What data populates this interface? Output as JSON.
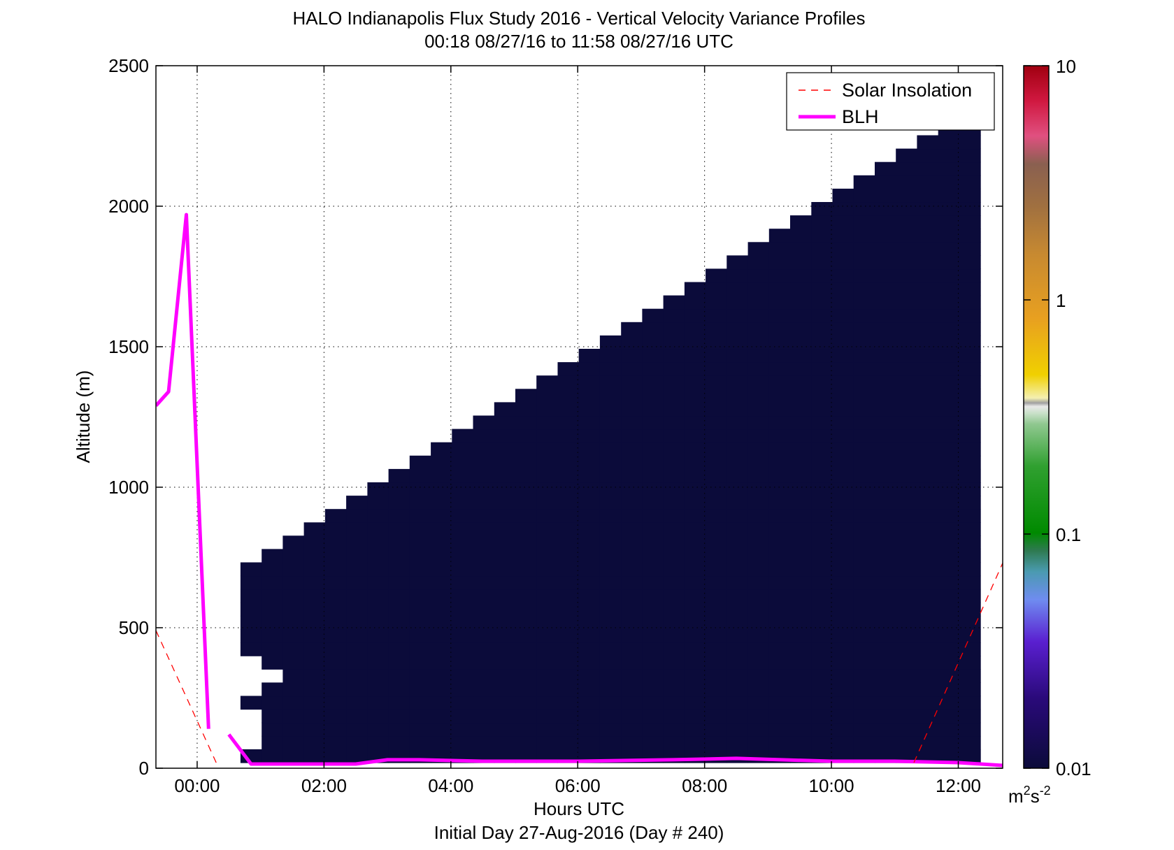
{
  "chart_data": {
    "type": "heatmap",
    "title": "HALO Indianapolis Flux Study 2016 - Vertical Velocity Variance Profiles",
    "subtitle": "00:18 08/27/16 to 11:58 08/27/16  UTC",
    "xlabel": "Hours UTC",
    "xlabel2": "Initial Day 27-Aug-2016 (Day # 240)",
    "ylabel": "Altitude (m)",
    "xlim": [
      -0.65,
      12.7
    ],
    "ylim": [
      0,
      2500
    ],
    "x_ticks": [
      0,
      2,
      4,
      6,
      8,
      10,
      12
    ],
    "x_tick_labels": [
      "00:00",
      "02:00",
      "04:00",
      "06:00",
      "08:00",
      "10:00",
      "12:00"
    ],
    "y_ticks": [
      0,
      500,
      1000,
      1500,
      2000,
      2500
    ],
    "y_tick_labels": [
      "0",
      "500",
      "1000",
      "1500",
      "2000",
      "2500"
    ],
    "grid": true,
    "legend_position": "top-right",
    "legend": [
      {
        "label": "Solar Insolation",
        "style": "dashed",
        "color": "#ff0000"
      },
      {
        "label": "BLH",
        "style": "solid",
        "color": "#ff00ff"
      }
    ],
    "colorbar": {
      "scale": "log",
      "range": [
        0.01,
        10
      ],
      "ticks": [
        0.01,
        0.1,
        1,
        10
      ],
      "tick_labels": [
        "0.01",
        "0.1",
        "1",
        "10"
      ],
      "unit_base": "m",
      "unit_exp1": "2",
      "unit_mid": "s",
      "unit_exp2": "-2"
    },
    "series": [
      {
        "name": "BLH",
        "x": [
          -0.65,
          -0.45,
          -0.17,
          0.18,
          0.5,
          0.85,
          1.5,
          2.5,
          3.0,
          3.5,
          4.5,
          6.0,
          7.5,
          8.5,
          9.2,
          10.0,
          11.0,
          12.0,
          12.7
        ],
        "y": [
          1290,
          1340,
          1970,
          140,
          120,
          15,
          15,
          15,
          30,
          30,
          25,
          25,
          30,
          35,
          30,
          25,
          25,
          20,
          10
        ],
        "gap_after_index": 3
      },
      {
        "name": "Solar Insolation",
        "x": [
          -0.65,
          0.3,
          11.3,
          12.7
        ],
        "y": [
          490,
          20,
          20,
          730
        ]
      }
    ],
    "heatmap": {
      "x_start": 0.35,
      "x_step": 0.3333,
      "y_start": 20,
      "y_step": 47.5,
      "n_cols": 36,
      "n_rows": 52,
      "grid_rows": [
        "!..........................,,,,,,,,,",
        "!!,,,,,,,,,,,,,,,,,,,,,,,,,,,,,,,,,,",
        "!!,,,,,,,,,,,,,,,,,,,,,,,,,,,,,,,,,,",
        "!!,,,,,,,,,,,,,,,,,,,,,,,,,,,,,,,,,,",
        "!,,,,,,,,,,,,,,,,,,,,,,,,,,,,,,,,,,,",
        "!!,,,,,,,,,,,,,,,,,,,,,,,,,,,,,,,,,,",
        "!!!,,,,,,,,,,,,,,,,,,,,,,,,,,,,,,,,,",
        "!!,,,,,,,,,,,,,,,,,,,,,,,,,,,,,,,,,,",
        "!,,,,,,,,,,,,,,,,,,,,,,,,,,,,,,,,,,,",
        "!,,,,,,,,,,,,,,,,,,,,,,,,,,,,,,,,,,,",
        "!,,,,,,,,,,,,,,,,,,,,,,,,,,,,,,,,,,,",
        "!,,,,,,,,,,,,,,,,,,,,,,,,,,,,,,,,,,,",
        "!,,,,,,,,,,,,,,,,,,,,,,,,,,,,,,,,,,,",
        "!,,,,,,,,,,,,,,,,,,,,,,,,,,,,,,,,,,,",
        "!,,,,,,,,,,,,,,,,,,,,,,,,,,,,,,,,,,,",
        "!!,,,,,,,,,,,,,,,,,,,,,,,,,,,,,,,,,,",
        "!!!,,,,,,,,,,,,,,,,,,,,,,,,,,,,,,,,,",
        "!!!!,,,,,,,,,,,,,,,,,,,,,,,,,,,,,,,,",
        "!!!!!,,,,,,,,,,,,,,,,,,,,,,,,,,,,,,,",
        "!!!!!!,,,,,,,,,,,,,,,,,,,,,,,,,,,,,,",
        "!!!!!!!,,,,,,,,,,,,,,,,,,,,,,,,,,,,,",
        "!!!!!!!!,,,,,,,,,,,,,,,,,,,,,,,,,,,,",
        "!!!!!!!!!,,,,,,,,,,,,,,,,,,,,,,,,,,,",
        "!!!!!!!!!!,,,,,,,,,,,,,,,,,,,,,,,,,,",
        "!!!!!!!!!!!,,,,,,,,,,,,,,,,,,,,,,,,,",
        "!!!!!!!!!!!!,,,,,,,,,,,,,,,,,,,,,,,,",
        "!!!!!!!!!!!!!,,,,,,,,,,,,,,,,,,,,,,,",
        "!!!!!!!!!!!!!!,,,,,,,,,,,,,,,,,,,,,,",
        "!!!!!!!!!!!!!!!,,,,,,,,,,,,,,,,,,,,,",
        "!!!!!!!!!!!!!!!!,,,,,,,,,,,,,,,,,,,,",
        "!!!!!!!!!!!!!!!!!,,,,,,,,,,,,,,,,,,,",
        "!!!!!!!!!!!!!!!!!!,,,,,,,,,,,,,,,,,,",
        "!!!!!!!!!!!!!!!!!!!,,,,,,,,,,,,,,,,,",
        "!!!!!!!!!!!!!!!!!!!!,,,,,,,,,,,,,,,,",
        "!!!!!!!!!!!!!!!!!!!!!,,,,,,,,,,,,,,,",
        "!!!!!!!!!!!!!!!!!!!!!!,,,,,,,,,,,,,,",
        "!!!!!!!!!!!!!!!!!!!!!!!,,,,,,,,,,,,,",
        "!!!!!!!!!!!!!!!!!!!!!!!!,,,,,,,,,,,,",
        "!!!!!!!!!!!!!!!!!!!!!!!!!,,,,,,,,,,,",
        "!!!!!!!!!!!!!!!!!!!!!!!!!!,,,,,,,,,,",
        "!!!!!!!!!!!!!!!!!!!!!!!!!!!,,,,,,,,,",
        "!!!!!!!!!!!!!!!!!!!!!!!!!!!!,,,,,,,,",
        "!!!!!!!!!!!!!!!!!!!!!!!!!!!!!,,,,,,,",
        "!!!!!!!!!!!!!!!!!!!!!!!!!!!!!!,,,,,,",
        "!!!!!!!!!!!!!!!!!!!!!!!!!!!!!!!,,,,,",
        "!!!!!!!!!!!!!!!!!!!!!!!!!!!!!!!!,,,,",
        "!!!!!!!!!!!!!!!!!!!!!!!!!!!!!!!!!,,,",
        "!!!!!!!!!!!!!!!!!!!!!!!!!!!!!!!!!!,,",
        "!!!!!!!!!!!!!!!!!!!!!!!!!!!!!!!!!!!,",
        "!!!!!!!!!!!!!!!!!!!!!!!!!!!!!!!!!!!!",
        "!!!!!!!!!!!!!!!!!!!!!!!!!!!!!!!!!!!!",
        "!!!!!!!!!!!!!!!!!!!!!!!!!!!!!!!!!!!!"
      ],
      "cell_values": {
        "!": null,
        ".": 0.011,
        ",": 0.011
      }
    }
  }
}
